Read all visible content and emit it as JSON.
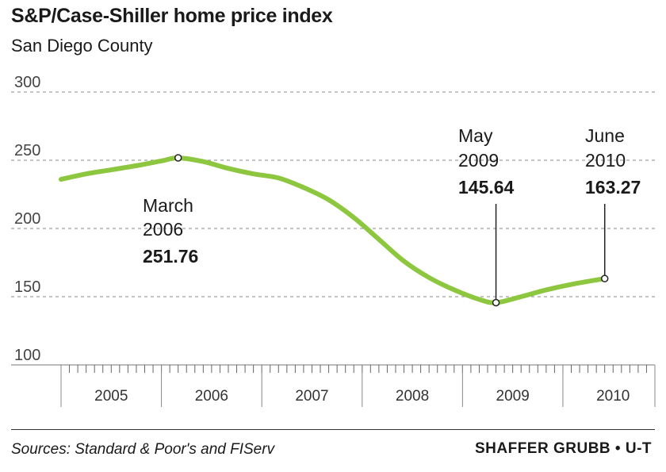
{
  "chart_data": {
    "type": "line",
    "title": "S&P/Case-Shiller home price index",
    "subtitle": "San Diego County",
    "ylim": [
      100,
      300
    ],
    "yticks": [
      300,
      250,
      200,
      150,
      100
    ],
    "xlim": [
      "2005-01",
      "2010-12"
    ],
    "years": [
      "2005",
      "2006",
      "2007",
      "2008",
      "2009",
      "2010"
    ],
    "grid": true,
    "series": [
      {
        "color": "#8dc63f",
        "x": [
          "2005-01",
          "2005-04",
          "2005-07",
          "2005-10",
          "2006-01",
          "2006-03",
          "2006-06",
          "2006-09",
          "2006-12",
          "2007-03",
          "2007-06",
          "2007-09",
          "2007-12",
          "2008-03",
          "2008-06",
          "2008-09",
          "2008-12",
          "2009-03",
          "2009-05",
          "2009-08",
          "2009-11",
          "2010-02",
          "2010-06"
        ],
        "values": [
          236,
          240,
          243,
          246,
          249.5,
          251.76,
          249,
          244,
          240,
          237,
          230,
          221,
          208,
          192,
          176,
          164,
          155,
          148,
          145.64,
          150,
          155,
          159,
          163.27
        ]
      }
    ],
    "annotations": [
      {
        "x": "2006-03",
        "value": 251.76,
        "line1": "March",
        "line2": "2006",
        "label": "251.76"
      },
      {
        "x": "2009-05",
        "value": 145.64,
        "line1": "May",
        "line2": "2009",
        "label": "145.64"
      },
      {
        "x": "2010-06",
        "value": 163.27,
        "line1": "June",
        "line2": "2010",
        "label": "163.27"
      }
    ]
  },
  "footer": {
    "source": "Sources: Standard & Poor's and FIServ",
    "credit": "SHAFFER GRUBB • U-T"
  }
}
